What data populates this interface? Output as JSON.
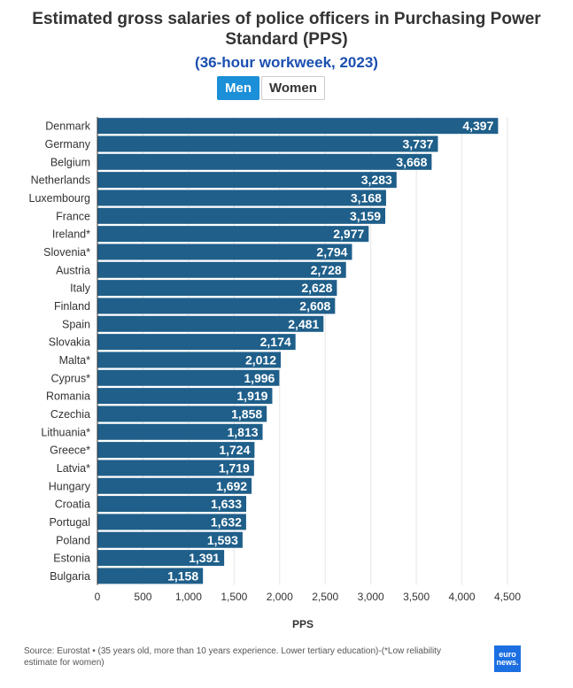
{
  "toggle": {
    "men": "Men",
    "women": "Women"
  },
  "source": "Source: Eurostat • (35 years old, more than 10 years experience. Lower tertiary education)-(*Low reliability estimate for women)",
  "logo": {
    "line1": "euro",
    "line2": "news."
  },
  "colors": {
    "bar": "#1f5f8a",
    "axis": "#333333",
    "grid": "#e6e6e6",
    "accent": "#1b8fd8",
    "subtitle": "#1a4fb0"
  },
  "chart_data": {
    "type": "bar",
    "orientation": "horizontal",
    "title": "Estimated gross salaries of police officers in Purchasing Power Standard (PPS)",
    "subtitle": "(36-hour workweek, 2023)",
    "xlabel": "PPS",
    "ylabel": "",
    "xlim": [
      0,
      4500
    ],
    "ticks": [
      0,
      500,
      1000,
      1500,
      2000,
      2500,
      3000,
      3500,
      4000,
      4500
    ],
    "tick_labels": [
      "0",
      "500",
      "1,000",
      "1,500",
      "2,000",
      "2,500",
      "3,000",
      "3,500",
      "4,000",
      "4,500"
    ],
    "categories": [
      "Denmark",
      "Germany",
      "Belgium",
      "Netherlands",
      "Luxembourg",
      "France",
      "Ireland*",
      "Slovenia*",
      "Austria",
      "Italy",
      "Finland",
      "Spain",
      "Slovakia",
      "Malta*",
      "Cyprus*",
      "Romania",
      "Czechia",
      "Lithuania*",
      "Greece*",
      "Latvia*",
      "Hungary",
      "Croatia",
      "Portugal",
      "Poland",
      "Estonia",
      "Bulgaria"
    ],
    "values": [
      4397,
      3737,
      3668,
      3283,
      3168,
      3159,
      2977,
      2794,
      2728,
      2628,
      2608,
      2481,
      2174,
      2012,
      1996,
      1919,
      1858,
      1813,
      1724,
      1719,
      1692,
      1633,
      1632,
      1593,
      1391,
      1158
    ],
    "value_labels": [
      "4,397",
      "3,737",
      "3,668",
      "3,283",
      "3,168",
      "3,159",
      "2,977",
      "2,794",
      "2,728",
      "2,628",
      "2,608",
      "2,481",
      "2,174",
      "2,012",
      "1,996",
      "1,919",
      "1,858",
      "1,813",
      "1,724",
      "1,719",
      "1,692",
      "1,633",
      "1,632",
      "1,593",
      "1,391",
      "1,158"
    ],
    "grid": true,
    "legend": "none"
  }
}
